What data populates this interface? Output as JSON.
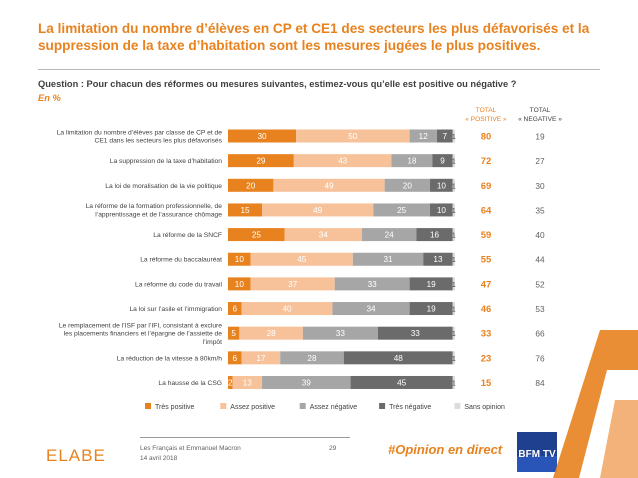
{
  "title": "La limitation du nombre d’élèves en CP et CE1 des secteurs les plus défavorisés et la suppression de la taxe d’habitation sont les mesures jugées le plus positives.",
  "question": "Question : Pour chacun des réformes ou mesures suivantes, estimez-vous qu’elle est positive ou négative ?",
  "unit": "En  %",
  "header_positive": [
    "TOTAL",
    "« POSITIVE »"
  ],
  "header_negative": [
    "TOTAL",
    "« NEGATIVE »"
  ],
  "colors": {
    "tres_positive": "#e8821f",
    "assez_positive": "#f7c29a",
    "assez_negative": "#a6a6a6",
    "tres_negative": "#6b6b6b",
    "sans_opinion": "#dcdcdc",
    "accent": "#e8821f"
  },
  "chart_data": {
    "type": "bar",
    "orientation": "horizontal-stacked",
    "xlim": [
      0,
      100
    ],
    "categories": [
      "La limitation du nombre d’élèves par classe de CP et de CE1 dans les secteurs les plus défavorisés",
      "La suppression de la taxe d’habitation",
      "La loi de moralisation de la vie politique",
      "La réforme de la formation professionnelle, de l’apprentissage et de l’assurance chômage",
      "La réforme de la SNCF",
      "La réforme du baccalauréat",
      "La réforme du code du travail",
      "La loi sur l’asile et l’immigration",
      "Le remplacement de l’ISF par l’IFI, consistant à exclure les placements financiers et l’épargne de l’assiette de l’impôt",
      "La réduction de la vitesse à 80km/h",
      "La hausse de la CSG"
    ],
    "series": [
      {
        "name": "Très positive",
        "values": [
          30,
          29,
          20,
          15,
          25,
          10,
          10,
          6,
          5,
          6,
          2
        ]
      },
      {
        "name": "Assez positive",
        "values": [
          50,
          43,
          49,
          49,
          34,
          45,
          37,
          40,
          28,
          17,
          13
        ]
      },
      {
        "name": "Assez négative",
        "values": [
          12,
          18,
          20,
          25,
          24,
          31,
          33,
          34,
          33,
          28,
          39
        ]
      },
      {
        "name": "Très négative",
        "values": [
          7,
          9,
          10,
          10,
          16,
          13,
          19,
          19,
          33,
          48,
          45
        ]
      },
      {
        "name": "Sans opinion",
        "values": [
          1,
          1,
          1,
          1,
          1,
          1,
          1,
          1,
          1,
          1,
          1
        ]
      }
    ],
    "total_positive": [
      80,
      72,
      69,
      64,
      59,
      55,
      47,
      46,
      33,
      23,
      15
    ],
    "total_negative": [
      19,
      27,
      30,
      35,
      40,
      44,
      52,
      53,
      66,
      76,
      84
    ],
    "legend_position": "bottom"
  },
  "footer": {
    "logo": "ELABE",
    "line1": "Les Français et Emmanuel Macron",
    "line2": "14 avril 2018",
    "page": "29",
    "hashtag": "#Opinion en direct",
    "partner_logo": "BFM TV"
  }
}
